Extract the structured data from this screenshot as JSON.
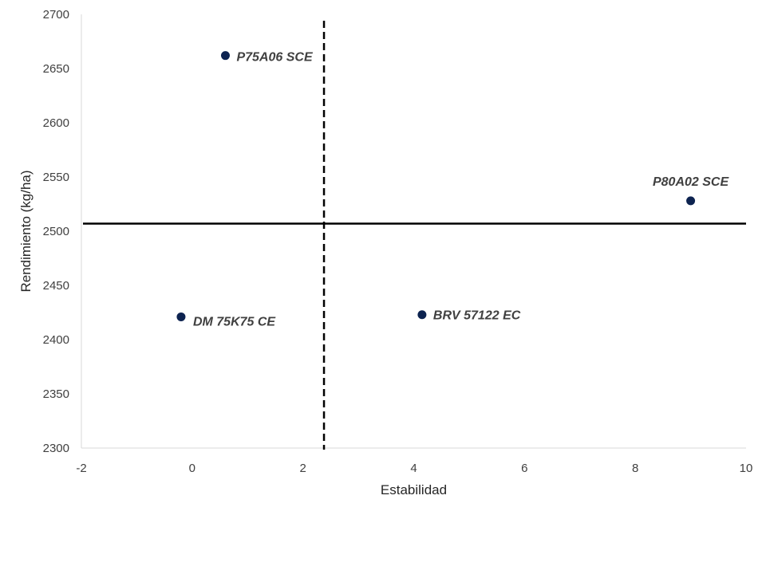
{
  "chart_data": {
    "type": "scatter",
    "title": "",
    "xlabel": "Estabilidad",
    "ylabel": "Rendimiento (kg/ha)",
    "xlim": [
      -2,
      10
    ],
    "ylim": [
      2300,
      2700
    ],
    "x_ticks": [
      -2,
      0,
      2,
      4,
      6,
      8,
      10
    ],
    "y_ticks": [
      2300,
      2350,
      2400,
      2450,
      2500,
      2550,
      2600,
      2650,
      2700
    ],
    "grid": false,
    "legend": "none",
    "marker_color": "#0d2350",
    "points": [
      {
        "label": "P75A06 SCE",
        "x": 0.6,
        "y": 2662
      },
      {
        "label": "P80A02 SCE",
        "x": 9.0,
        "y": 2528
      },
      {
        "label": "DM 75K75 CE",
        "x": -0.2,
        "y": 2421
      },
      {
        "label": "BRV 57122 EC",
        "x": 4.15,
        "y": 2423
      }
    ],
    "reference_lines": [
      {
        "orientation": "horizontal",
        "y": 2507,
        "style": "solid"
      },
      {
        "orientation": "vertical",
        "x": 2.38,
        "style": "dashed"
      }
    ]
  }
}
